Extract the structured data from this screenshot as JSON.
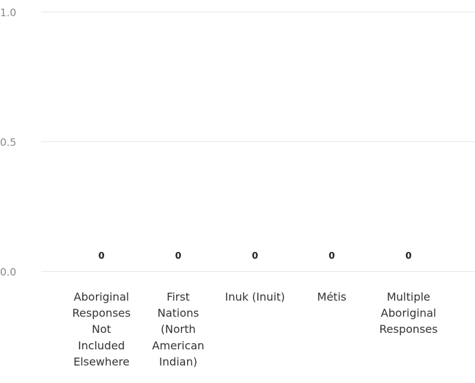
{
  "chart_data": {
    "type": "bar",
    "categories": [
      [
        "Aboriginal",
        "Responses",
        "Not",
        "Included",
        "Elsewhere"
      ],
      [
        "First",
        "Nations",
        "(North",
        "American",
        "Indian)"
      ],
      [
        "Inuk (Inuit)"
      ],
      [
        "Métis"
      ],
      [
        "Multiple",
        "Aboriginal",
        "Responses"
      ]
    ],
    "values": [
      0,
      0,
      0,
      0,
      0
    ],
    "data_labels": [
      "0",
      "0",
      "0",
      "0",
      "0"
    ],
    "yticks": [
      "0.0",
      "0.5",
      "1.0"
    ],
    "ylim": [
      0,
      1
    ],
    "grid": true,
    "colors": {
      "grid": "#e6e6e6",
      "tick_text": "#888888",
      "label_text": "#333333",
      "data_label": "#222222"
    }
  }
}
